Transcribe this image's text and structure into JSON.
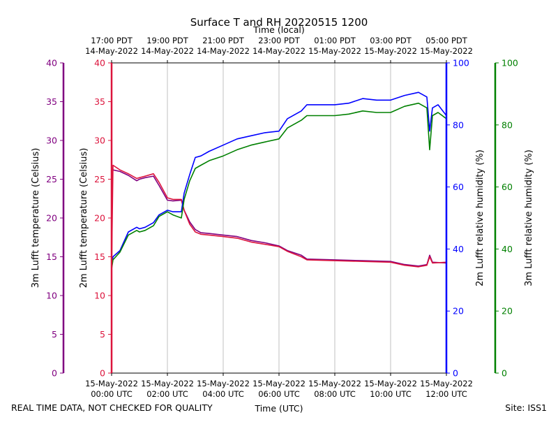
{
  "chart_data": {
    "type": "line",
    "title": "Surface T and RH 20220515 1200",
    "top_axis_label": "Time (local)",
    "xlabel": "Time (UTC)",
    "footer_left": "REAL TIME DATA, NOT CHECKED FOR QUALITY",
    "footer_right": "Site: ISS1",
    "x_unit": "hours after 15-May-2022 00:00 UTC",
    "xlim": [
      0,
      12
    ],
    "x_ticks_utc": [
      {
        "value": 0,
        "date": "15-May-2022",
        "time": "00:00 UTC"
      },
      {
        "value": 2,
        "date": "15-May-2022",
        "time": "02:00 UTC"
      },
      {
        "value": 4,
        "date": "15-May-2022",
        "time": "04:00 UTC"
      },
      {
        "value": 6,
        "date": "15-May-2022",
        "time": "06:00 UTC"
      },
      {
        "value": 8,
        "date": "15-May-2022",
        "time": "08:00 UTC"
      },
      {
        "value": 10,
        "date": "15-May-2022",
        "time": "10:00 UTC"
      },
      {
        "value": 12,
        "date": "15-May-2022",
        "time": "12:00 UTC"
      }
    ],
    "x_ticks_local": [
      {
        "value": 0,
        "time": "17:00 PDT",
        "date": "14-May-2022"
      },
      {
        "value": 2,
        "time": "19:00 PDT",
        "date": "14-May-2022"
      },
      {
        "value": 4,
        "time": "21:00 PDT",
        "date": "14-May-2022"
      },
      {
        "value": 6,
        "time": "23:00 PDT",
        "date": "14-May-2022"
      },
      {
        "value": 8,
        "time": "01:00 PDT",
        "date": "15-May-2022"
      },
      {
        "value": 10,
        "time": "03:00 PDT",
        "date": "15-May-2022"
      },
      {
        "value": 12,
        "time": "05:00 PDT",
        "date": "15-May-2022"
      }
    ],
    "axes": {
      "temp_3m": {
        "label": "3m Lufft temperature (Celsius)",
        "ylim": [
          0,
          40
        ],
        "ticks": [
          0,
          5,
          10,
          15,
          20,
          25,
          30,
          35,
          40
        ],
        "color": "#800080"
      },
      "temp_2m": {
        "label": "2m Lufft temperature (Celsius)",
        "ylim": [
          0,
          40
        ],
        "ticks": [
          0,
          5,
          10,
          15,
          20,
          25,
          30,
          35,
          40
        ],
        "color": "#dc143c"
      },
      "rh_2m": {
        "label": "2m Lufft relative humidity (%)",
        "ylim": [
          0,
          100
        ],
        "ticks": [
          0,
          20,
          40,
          60,
          80,
          100
        ],
        "color": "#0000ff"
      },
      "rh_3m": {
        "label": "3m Lufft relative humidity (%)",
        "ylim": [
          0,
          100
        ],
        "ticks": [
          0,
          20,
          40,
          60,
          80,
          100
        ],
        "color": "#008000"
      }
    },
    "series": [
      {
        "name": "3m Lufft temperature",
        "axis": "temp_3m",
        "color": "#800080",
        "x": [
          0,
          0.05,
          0.3,
          0.6,
          0.9,
          1.0,
          1.2,
          1.5,
          1.7,
          2.0,
          2.2,
          2.5,
          2.6,
          2.8,
          3.0,
          3.2,
          3.5,
          4.0,
          4.5,
          5.0,
          5.5,
          6.0,
          6.3,
          6.8,
          7.0,
          8.0,
          9.0,
          10.0,
          10.5,
          11.0,
          11.3,
          11.4,
          11.5,
          12.0
        ],
        "y": [
          26.5,
          26.2,
          26.0,
          25.5,
          24.8,
          25.0,
          25.2,
          25.4,
          24.2,
          22.3,
          22.2,
          22.3,
          21.0,
          19.5,
          18.5,
          18.1,
          18.0,
          17.8,
          17.6,
          17.1,
          16.8,
          16.4,
          15.8,
          15.2,
          14.7,
          14.6,
          14.5,
          14.4,
          14.0,
          13.8,
          14.0,
          15.2,
          14.3,
          14.2
        ]
      },
      {
        "name": "2m Lufft temperature",
        "axis": "temp_2m",
        "color": "#dc143c",
        "x": [
          0,
          0.05,
          0.3,
          0.6,
          0.9,
          1.0,
          1.2,
          1.5,
          1.7,
          2.0,
          2.2,
          2.5,
          2.6,
          2.8,
          3.0,
          3.2,
          3.5,
          4.0,
          4.5,
          5.0,
          5.5,
          6.0,
          6.3,
          6.8,
          7.0,
          8.0,
          9.0,
          10.0,
          10.5,
          11.0,
          11.3,
          11.4,
          11.5,
          12.0
        ],
        "y": [
          13.5,
          26.8,
          26.2,
          25.7,
          25.1,
          25.2,
          25.4,
          25.7,
          24.6,
          22.6,
          22.4,
          22.4,
          21.0,
          19.2,
          18.2,
          17.9,
          17.8,
          17.6,
          17.4,
          16.9,
          16.6,
          16.3,
          15.7,
          15.0,
          14.6,
          14.5,
          14.4,
          14.3,
          13.9,
          13.7,
          13.9,
          15.0,
          14.2,
          14.3
        ]
      },
      {
        "name": "2m Lufft relative humidity",
        "axis": "rh_2m",
        "color": "#0000ff",
        "x": [
          0,
          0.05,
          0.3,
          0.6,
          0.9,
          1.0,
          1.2,
          1.5,
          1.7,
          2.0,
          2.2,
          2.5,
          2.6,
          2.8,
          3.0,
          3.2,
          3.5,
          4.0,
          4.5,
          5.0,
          5.5,
          6.0,
          6.3,
          6.8,
          7.0,
          8.0,
          8.5,
          9.0,
          9.5,
          10.0,
          10.5,
          11.0,
          11.3,
          11.4,
          11.5,
          11.7,
          12.0
        ],
        "y": [
          34.5,
          37.5,
          39.5,
          45.5,
          47.0,
          46.5,
          47.0,
          48.5,
          51.0,
          52.5,
          52.0,
          52.0,
          58.0,
          64.0,
          69.5,
          70.0,
          71.5,
          73.5,
          75.5,
          76.5,
          77.5,
          78.0,
          82.0,
          84.5,
          86.5,
          86.5,
          87.0,
          88.5,
          88.0,
          88.0,
          89.5,
          90.5,
          89.0,
          78.0,
          85.5,
          86.5,
          83.0
        ]
      },
      {
        "name": "3m Lufft relative humidity",
        "axis": "rh_3m",
        "color": "#008000",
        "x": [
          0,
          0.05,
          0.3,
          0.6,
          0.9,
          1.0,
          1.2,
          1.5,
          1.7,
          2.0,
          2.2,
          2.5,
          2.6,
          2.8,
          3.0,
          3.2,
          3.5,
          4.0,
          4.5,
          5.0,
          5.5,
          6.0,
          6.3,
          6.8,
          7.0,
          8.0,
          8.5,
          9.0,
          9.5,
          10.0,
          10.5,
          11.0,
          11.3,
          11.4,
          11.5,
          11.7,
          12.0
        ],
        "y": [
          33.5,
          36.5,
          39.0,
          44.5,
          46.0,
          45.5,
          46.0,
          47.5,
          50.5,
          52.0,
          51.0,
          50.0,
          56.0,
          62.0,
          66.0,
          67.0,
          68.5,
          70.0,
          72.0,
          73.5,
          74.5,
          75.5,
          79.0,
          81.5,
          83.0,
          83.0,
          83.5,
          84.5,
          84.0,
          84.0,
          86.0,
          87.0,
          85.5,
          72.0,
          83.0,
          84.0,
          82.0
        ]
      }
    ]
  }
}
